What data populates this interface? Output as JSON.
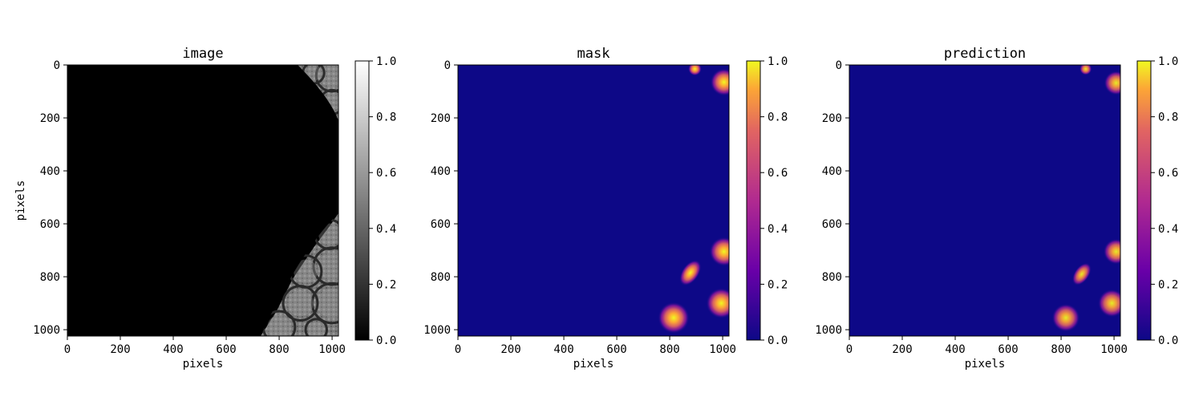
{
  "chart_data": [
    {
      "type": "heatmap",
      "title": "image",
      "xlabel": "pixels",
      "ylabel": "pixels",
      "xlim": [
        0,
        1024
      ],
      "ylim": [
        1024,
        0
      ],
      "xticks": [
        0,
        200,
        400,
        600,
        800,
        1000
      ],
      "yticks": [
        0,
        200,
        400,
        600,
        800,
        1000
      ],
      "colormap": "gray",
      "colorbar": {
        "range": [
          0,
          1
        ],
        "ticks": [
          "0.0",
          "0.2",
          "0.4",
          "0.6",
          "0.8",
          "1.0"
        ]
      },
      "content": "left region black; lens-shaped textured grayscale bubbles at right edge (top-right corner and bottom-right)"
    },
    {
      "type": "heatmap",
      "title": "mask",
      "xlabel": "pixels",
      "ylabel": "",
      "xlim": [
        0,
        1024
      ],
      "ylim": [
        1024,
        0
      ],
      "xticks": [
        0,
        200,
        400,
        600,
        800,
        1000
      ],
      "yticks": [
        0,
        200,
        400,
        600,
        800,
        1000
      ],
      "colormap": "plasma",
      "colorbar": {
        "range": [
          0,
          1
        ],
        "ticks": [
          "0.0",
          "0.2",
          "0.4",
          "0.6",
          "0.8",
          "1.0"
        ]
      },
      "blobs": [
        {
          "x": 895,
          "y": 15,
          "r": 22,
          "peak": 1.0
        },
        {
          "x": 1005,
          "y": 65,
          "r": 45,
          "peak": 1.0
        },
        {
          "x": 1005,
          "y": 705,
          "r": 48,
          "peak": 1.0
        },
        {
          "x": 878,
          "y": 785,
          "r": 40,
          "peak": 1.0
        },
        {
          "x": 995,
          "y": 900,
          "r": 50,
          "peak": 1.0
        },
        {
          "x": 815,
          "y": 955,
          "r": 52,
          "peak": 1.0
        }
      ]
    },
    {
      "type": "heatmap",
      "title": "prediction",
      "xlabel": "pixels",
      "ylabel": "",
      "xlim": [
        0,
        1024
      ],
      "ylim": [
        1024,
        0
      ],
      "xticks": [
        0,
        200,
        400,
        600,
        800,
        1000
      ],
      "yticks": [
        0,
        200,
        400,
        600,
        800,
        1000
      ],
      "colormap": "plasma",
      "colorbar": {
        "range": [
          0,
          1
        ],
        "ticks": [
          "0.0",
          "0.2",
          "0.4",
          "0.6",
          "0.8",
          "1.0"
        ]
      },
      "blobs": [
        {
          "x": 893,
          "y": 15,
          "r": 20,
          "peak": 0.95
        },
        {
          "x": 1008,
          "y": 68,
          "r": 40,
          "peak": 0.95
        },
        {
          "x": 1008,
          "y": 705,
          "r": 42,
          "peak": 0.95
        },
        {
          "x": 878,
          "y": 790,
          "r": 35,
          "peak": 0.95
        },
        {
          "x": 992,
          "y": 900,
          "r": 46,
          "peak": 0.95
        },
        {
          "x": 818,
          "y": 955,
          "r": 46,
          "peak": 0.95
        }
      ]
    }
  ]
}
